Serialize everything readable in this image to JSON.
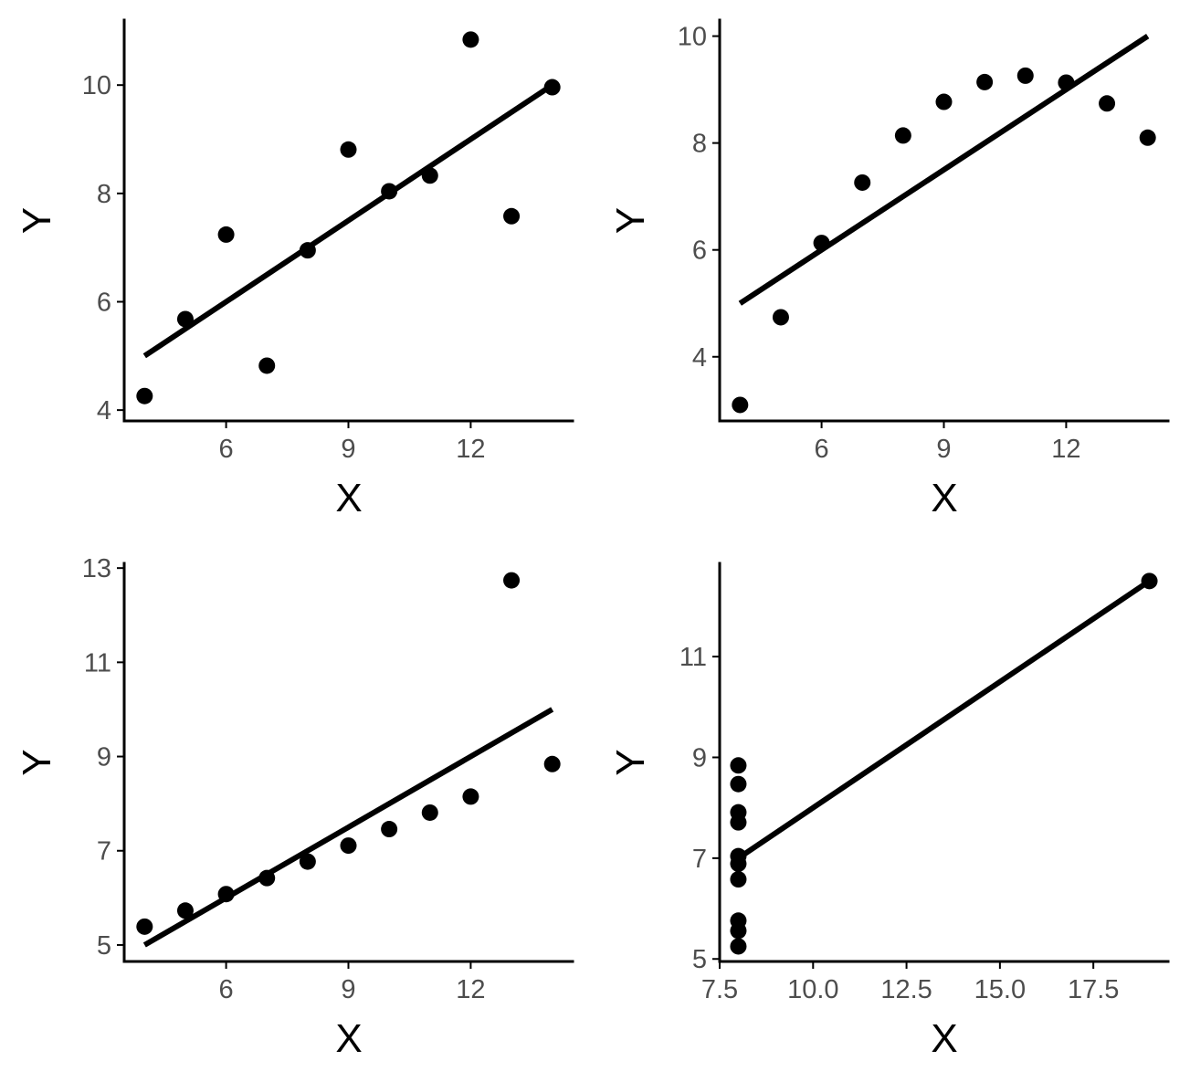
{
  "chart_data": [
    {
      "type": "scatter",
      "title": "",
      "xlabel": "X",
      "ylabel": "Y",
      "xlim": [
        3.5,
        14.5
      ],
      "ylim": [
        3.8,
        11.2
      ],
      "xticks": [
        6,
        9,
        12
      ],
      "yticks": [
        4,
        6,
        8,
        10
      ],
      "tick_labels_x": [
        "6",
        "9",
        "12"
      ],
      "tick_labels_y": [
        "4",
        "6",
        "8",
        "10"
      ],
      "grid": false,
      "x": [
        4,
        5,
        6,
        7,
        8,
        9,
        10,
        11,
        12,
        13,
        14
      ],
      "y": [
        4.26,
        5.68,
        7.24,
        4.82,
        6.95,
        8.81,
        8.04,
        8.33,
        10.84,
        7.58,
        9.96
      ],
      "fit_line": {
        "x": [
          4,
          14
        ],
        "y": [
          5.0,
          10.0
        ]
      }
    },
    {
      "type": "scatter",
      "title": "",
      "xlabel": "X",
      "ylabel": "Y",
      "xlim": [
        3.5,
        14.5
      ],
      "ylim": [
        2.8,
        10.3
      ],
      "xticks": [
        6,
        9,
        12
      ],
      "yticks": [
        4,
        6,
        8,
        10
      ],
      "tick_labels_x": [
        "6",
        "9",
        "12"
      ],
      "tick_labels_y": [
        "4",
        "6",
        "8",
        "10"
      ],
      "grid": false,
      "x": [
        4,
        5,
        6,
        7,
        8,
        9,
        10,
        11,
        12,
        13,
        14
      ],
      "y": [
        3.1,
        4.74,
        6.13,
        7.26,
        8.14,
        8.77,
        9.14,
        9.26,
        9.13,
        8.74,
        8.1
      ],
      "fit_line": {
        "x": [
          4,
          14
        ],
        "y": [
          5.0,
          10.0
        ]
      }
    },
    {
      "type": "scatter",
      "title": "",
      "xlabel": "X",
      "ylabel": "Y",
      "xlim": [
        3.5,
        14.5
      ],
      "ylim": [
        4.65,
        13.1
      ],
      "xticks": [
        6,
        9,
        12
      ],
      "yticks": [
        5,
        7,
        9,
        11,
        13
      ],
      "tick_labels_x": [
        "6",
        "9",
        "12"
      ],
      "tick_labels_y": [
        "5",
        "7",
        "9",
        "11",
        "13"
      ],
      "grid": false,
      "x": [
        4,
        5,
        6,
        7,
        8,
        9,
        10,
        11,
        12,
        13,
        14
      ],
      "y": [
        5.39,
        5.73,
        6.08,
        6.42,
        6.77,
        7.11,
        7.46,
        7.81,
        8.15,
        12.74,
        8.84
      ],
      "fit_line": {
        "x": [
          4,
          14
        ],
        "y": [
          5.0,
          10.0
        ]
      }
    },
    {
      "type": "scatter",
      "title": "",
      "xlabel": "X",
      "ylabel": "Y",
      "xlim": [
        7.5,
        19.5
      ],
      "ylim": [
        4.95,
        12.85
      ],
      "xticks": [
        7.5,
        10.0,
        12.5,
        15.0,
        17.5
      ],
      "yticks": [
        5,
        7,
        9,
        11
      ],
      "tick_labels_x": [
        "7.5",
        "10.0",
        "12.5",
        "15.0",
        "17.5"
      ],
      "tick_labels_y": [
        "5",
        "7",
        "9",
        "11"
      ],
      "grid": false,
      "x": [
        8,
        8,
        8,
        8,
        8,
        8,
        8,
        19,
        8,
        8,
        8
      ],
      "y": [
        6.58,
        5.76,
        7.71,
        8.84,
        8.47,
        7.04,
        5.25,
        12.5,
        5.56,
        7.91,
        6.89
      ],
      "fit_line": {
        "x": [
          8,
          19
        ],
        "y": [
          7.0,
          12.5
        ]
      }
    }
  ]
}
